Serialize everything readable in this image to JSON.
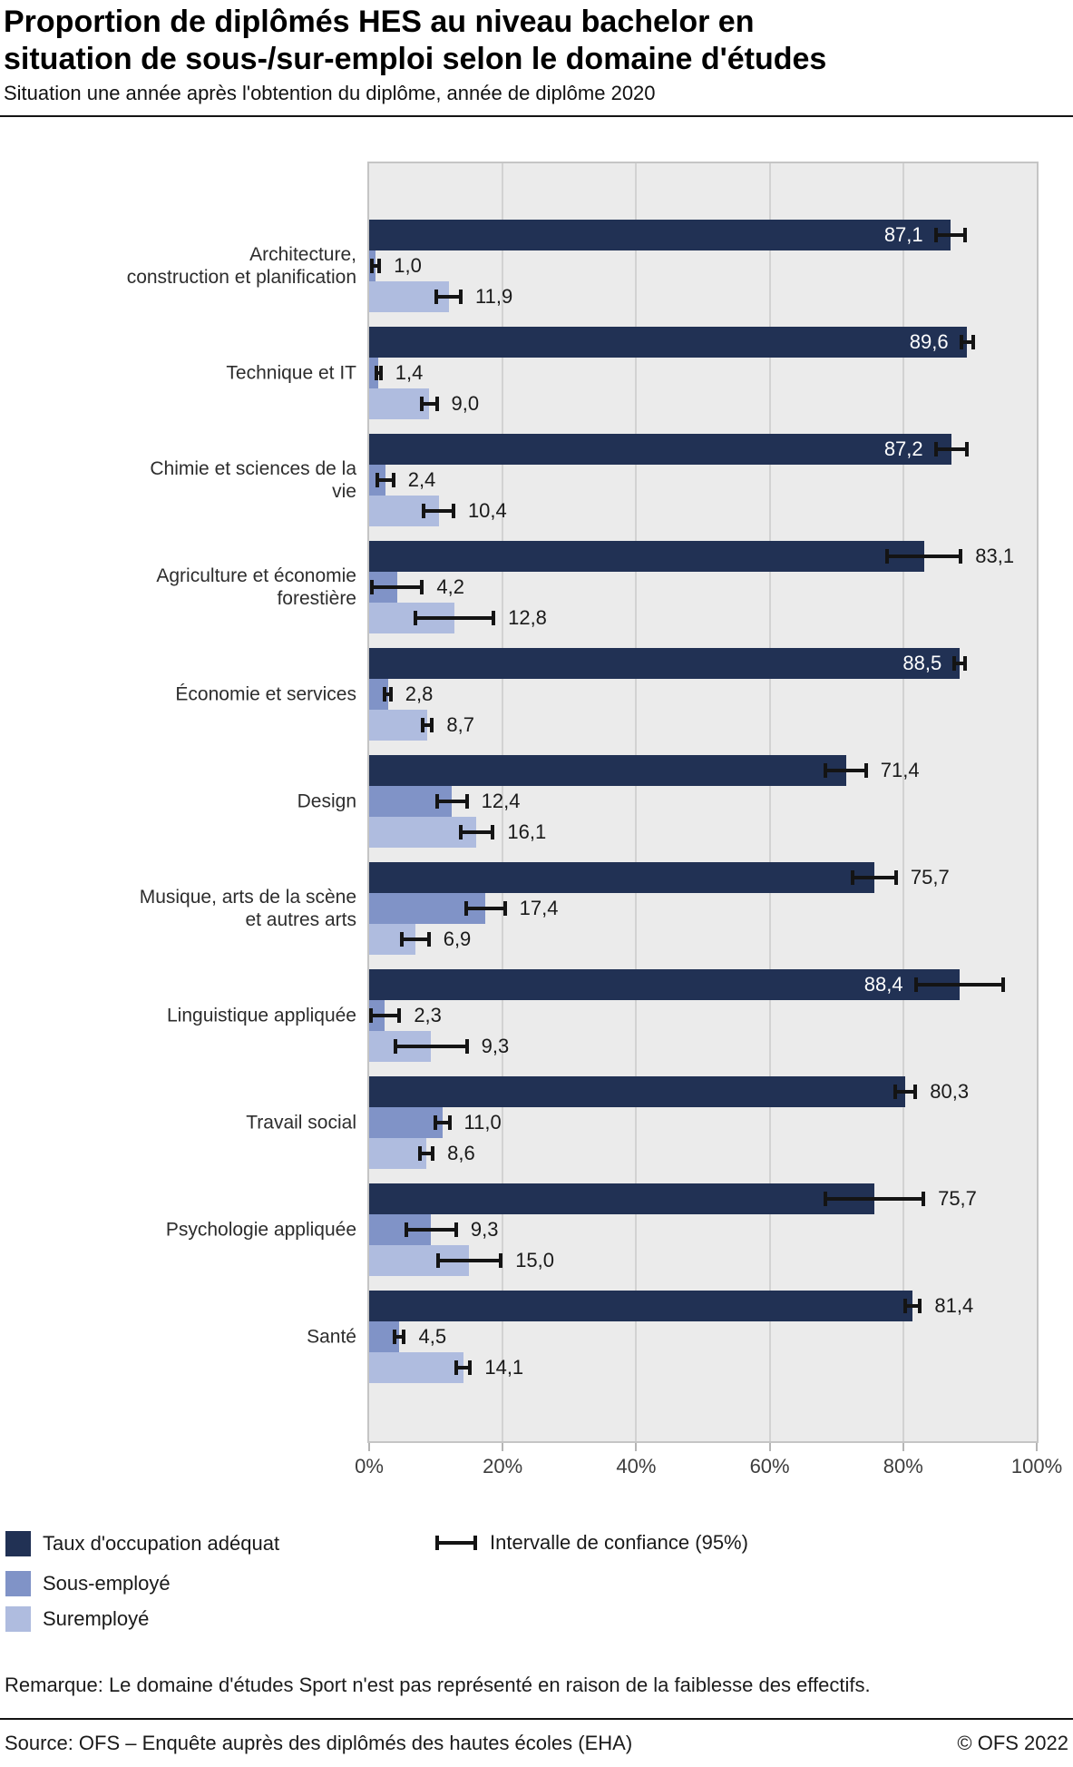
{
  "header": {
    "title_lines": [
      "Proportion de diplômés HES au niveau bachelor en",
      "situation de sous-/sur-emploi selon le domaine d'études"
    ],
    "subtitle": "Situation une année après l'obtention du diplôme, année de diplôme 2020"
  },
  "chart_data": {
    "type": "bar",
    "orientation": "horizontal",
    "unit": "%",
    "xlim": [
      0,
      100
    ],
    "grid": "vertical",
    "xticks": {
      "values": [
        0,
        20,
        40,
        60,
        80,
        100
      ],
      "labels": [
        "0%",
        "20%",
        "40%",
        "60%",
        "80%",
        "100%"
      ]
    },
    "series_names": [
      "Taux d'occupation adéquat",
      "Sous-employé",
      "Suremployé"
    ],
    "colors": {
      "adequat": "#213154",
      "sous": "#8093c7",
      "sur": "#afbcdf",
      "ci": "#141414",
      "plot_background": "#ebebeb"
    },
    "rows": [
      {
        "category_lines": [
          "Architecture,",
          "construction et planification"
        ],
        "adequat": {
          "value": 87.1,
          "label": "87,1",
          "ci": 2.5,
          "label_inside": true
        },
        "sous": {
          "value": 1.0,
          "label": "1,0",
          "ci": 0.8
        },
        "sur": {
          "value": 11.9,
          "label": "11,9",
          "ci": 2.1
        }
      },
      {
        "category_lines": [
          "Technique et IT"
        ],
        "adequat": {
          "value": 89.6,
          "label": "89,6",
          "ci": 1.2,
          "label_inside": true
        },
        "sous": {
          "value": 1.4,
          "label": "1,4",
          "ci": 0.6
        },
        "sur": {
          "value": 9.0,
          "label": "9,0",
          "ci": 1.4
        }
      },
      {
        "category_lines": [
          "Chimie et sciences de la",
          "vie"
        ],
        "adequat": {
          "value": 87.2,
          "label": "87,2",
          "ci": 2.6,
          "label_inside": true
        },
        "sous": {
          "value": 2.4,
          "label": "2,4",
          "ci": 1.5
        },
        "sur": {
          "value": 10.4,
          "label": "10,4",
          "ci": 2.5
        }
      },
      {
        "category_lines": [
          "Agriculture et économie",
          "forestière"
        ],
        "adequat": {
          "value": 83.1,
          "label": "83,1",
          "ci": 5.8,
          "label_inside": false
        },
        "sous": {
          "value": 4.2,
          "label": "4,2",
          "ci": 4.0
        },
        "sur": {
          "value": 12.8,
          "label": "12,8",
          "ci": 6.1
        }
      },
      {
        "category_lines": [
          "Économie et services"
        ],
        "adequat": {
          "value": 88.5,
          "label": "88,5",
          "ci": 1.1,
          "label_inside": true
        },
        "sous": {
          "value": 2.8,
          "label": "2,8",
          "ci": 0.7
        },
        "sur": {
          "value": 8.7,
          "label": "8,7",
          "ci": 1.0
        }
      },
      {
        "category_lines": [
          "Design"
        ],
        "adequat": {
          "value": 71.4,
          "label": "71,4",
          "ci": 3.3,
          "label_inside": false
        },
        "sous": {
          "value": 12.4,
          "label": "12,4",
          "ci": 2.5
        },
        "sur": {
          "value": 16.1,
          "label": "16,1",
          "ci": 2.7
        }
      },
      {
        "category_lines": [
          "Musique, arts de la scène",
          "et autres arts"
        ],
        "adequat": {
          "value": 75.7,
          "label": "75,7",
          "ci": 3.5,
          "label_inside": false
        },
        "sous": {
          "value": 17.4,
          "label": "17,4",
          "ci": 3.2
        },
        "sur": {
          "value": 6.9,
          "label": "6,9",
          "ci": 2.3
        }
      },
      {
        "category_lines": [
          "Linguistique appliquée"
        ],
        "adequat": {
          "value": 88.4,
          "label": "88,4",
          "ci": 6.8,
          "label_inside": true
        },
        "sous": {
          "value": 2.3,
          "label": "2,3",
          "ci": 2.5
        },
        "sur": {
          "value": 9.3,
          "label": "9,3",
          "ci": 5.6
        }
      },
      {
        "category_lines": [
          "Travail social"
        ],
        "adequat": {
          "value": 80.3,
          "label": "80,3",
          "ci": 1.8,
          "label_inside": false
        },
        "sous": {
          "value": 11.0,
          "label": "11,0",
          "ci": 1.3
        },
        "sur": {
          "value": 8.6,
          "label": "8,6",
          "ci": 1.2
        }
      },
      {
        "category_lines": [
          "Psychologie appliquée"
        ],
        "adequat": {
          "value": 75.7,
          "label": "75,7",
          "ci": 7.6,
          "label_inside": false
        },
        "sous": {
          "value": 9.3,
          "label": "9,3",
          "ci": 4.0
        },
        "sur": {
          "value": 15.0,
          "label": "15,0",
          "ci": 5.0
        }
      },
      {
        "category_lines": [
          "Santé"
        ],
        "adequat": {
          "value": 81.4,
          "label": "81,4",
          "ci": 1.4,
          "label_inside": false
        },
        "sous": {
          "value": 4.5,
          "label": "4,5",
          "ci": 1.0
        },
        "sur": {
          "value": 14.1,
          "label": "14,1",
          "ci": 1.3
        }
      }
    ]
  },
  "legend": {
    "series": [
      {
        "label": "Taux d'occupation adéquat",
        "color": "#213154"
      },
      {
        "label": "Sous-employé",
        "color": "#8093c7"
      },
      {
        "label": "Suremployé",
        "color": "#afbcdf"
      }
    ],
    "ci_label": "Intervalle de confiance (95%)"
  },
  "remark": "Remarque: Le domaine d'études Sport n'est pas représenté en raison de la faiblesse des effectifs.",
  "footer": {
    "source": "Source: OFS – Enquête auprès des diplômés des hautes écoles (EHA)",
    "copyright": "© OFS 2022"
  }
}
